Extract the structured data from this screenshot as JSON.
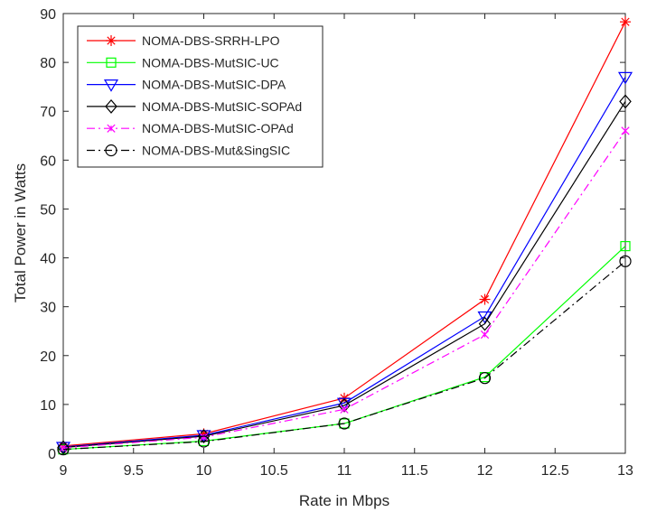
{
  "chart_data": {
    "type": "line",
    "xlabel": "Rate in Mbps",
    "ylabel": "Total Power in Watts",
    "xlim": [
      9,
      13
    ],
    "ylim": [
      0,
      90
    ],
    "x": [
      9,
      10,
      11,
      12,
      13
    ],
    "xticks": [
      "9",
      "9.5",
      "10",
      "10.5",
      "11",
      "11.5",
      "12",
      "12.5",
      "13"
    ],
    "yticks": [
      "0",
      "10",
      "20",
      "30",
      "40",
      "50",
      "60",
      "70",
      "80",
      "90"
    ],
    "grid": false,
    "legend_position": "top-left",
    "series": [
      {
        "name": "NOMA-DBS-SRRH-LPO",
        "values": [
          1.5,
          4.0,
          11.3,
          31.5,
          88.3
        ],
        "color": "#ff0000",
        "marker": "asterisk",
        "dash": "solid"
      },
      {
        "name": "NOMA-DBS-MutSIC-UC",
        "values": [
          0.8,
          2.5,
          6.1,
          15.6,
          42.4
        ],
        "color": "#00ff00",
        "marker": "square",
        "dash": "solid"
      },
      {
        "name": "NOMA-DBS-MutSIC-DPA",
        "values": [
          1.3,
          3.7,
          10.3,
          28.0,
          77.0
        ],
        "color": "#0000ff",
        "marker": "triangle-down",
        "dash": "solid"
      },
      {
        "name": "NOMA-DBS-MutSIC-SOPAd",
        "values": [
          1.2,
          3.5,
          9.8,
          26.5,
          72.0
        ],
        "color": "#000000",
        "marker": "diamond",
        "dash": "solid"
      },
      {
        "name": "NOMA-DBS-MutSIC-OPAd",
        "values": [
          1.1,
          3.3,
          9.0,
          24.3,
          66.0
        ],
        "color": "#ff00ff",
        "marker": "x",
        "dash": "dashdot"
      },
      {
        "name": "NOMA-DBS-Mut&SingSIC",
        "values": [
          0.8,
          2.4,
          6.1,
          15.4,
          39.3
        ],
        "color": "#000000",
        "marker": "circle",
        "dash": "dashdot"
      }
    ]
  }
}
